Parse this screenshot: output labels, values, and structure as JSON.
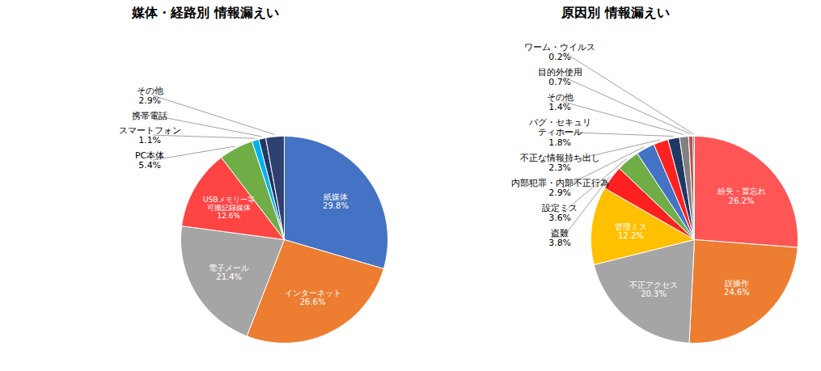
{
  "chart_data": [
    {
      "type": "pie",
      "title": "媒体・経路別 情報漏えい",
      "categories": [
        "紙媒体",
        "インターネット",
        "電子メール",
        "USBメモリー等\n可搬記録媒体",
        "PC本体",
        "スマートフォン",
        "携帯電話",
        "その他"
      ],
      "values": [
        29.8,
        26.6,
        21.4,
        12.6,
        5.4,
        1.1,
        1.1,
        2.9
      ],
      "value_labels": [
        "29.8%",
        "26.6%",
        "21.4%",
        "12.6%",
        "5.4%",
        "1.1%",
        null,
        "2.9%"
      ],
      "colors": [
        "#4472C4",
        "#ED7D31",
        "#A5A5A5",
        "#FF4444",
        "#70AD47",
        "#00B0F0",
        "#1F3864",
        "#2E4070"
      ],
      "data_labels": true
    },
    {
      "type": "pie",
      "title": "原因別 情報漏えい",
      "categories": [
        "紛失・置忘れ",
        "誤操作",
        "不正アクセス",
        "管理ミス",
        "盗難",
        "設定ミス",
        "内部犯罪・内部不正行為",
        "不正な情報持ち出し",
        "バグ・セキュリ\nティホール",
        "その他",
        "目的外使用",
        "ワーム・ウイルス"
      ],
      "values": [
        26.2,
        24.6,
        20.3,
        12.2,
        3.8,
        3.6,
        2.9,
        2.3,
        1.8,
        1.4,
        0.7,
        0.2
      ],
      "value_labels": [
        "26.2%",
        "24.6%",
        "20.3%",
        "12.2%",
        "3.8%",
        "3.6%",
        "2.9%",
        "2.3%",
        "1.8%",
        "1.4%",
        "0.7%",
        "0.2%"
      ],
      "colors": [
        "#FF5555",
        "#ED7D31",
        "#A5A5A5",
        "#FFC000",
        "#FF2020",
        "#70AD47",
        "#4472C4",
        "#FF2020",
        "#203864",
        "#808080",
        "#C05050",
        "#1F3864"
      ],
      "data_labels": true
    }
  ]
}
